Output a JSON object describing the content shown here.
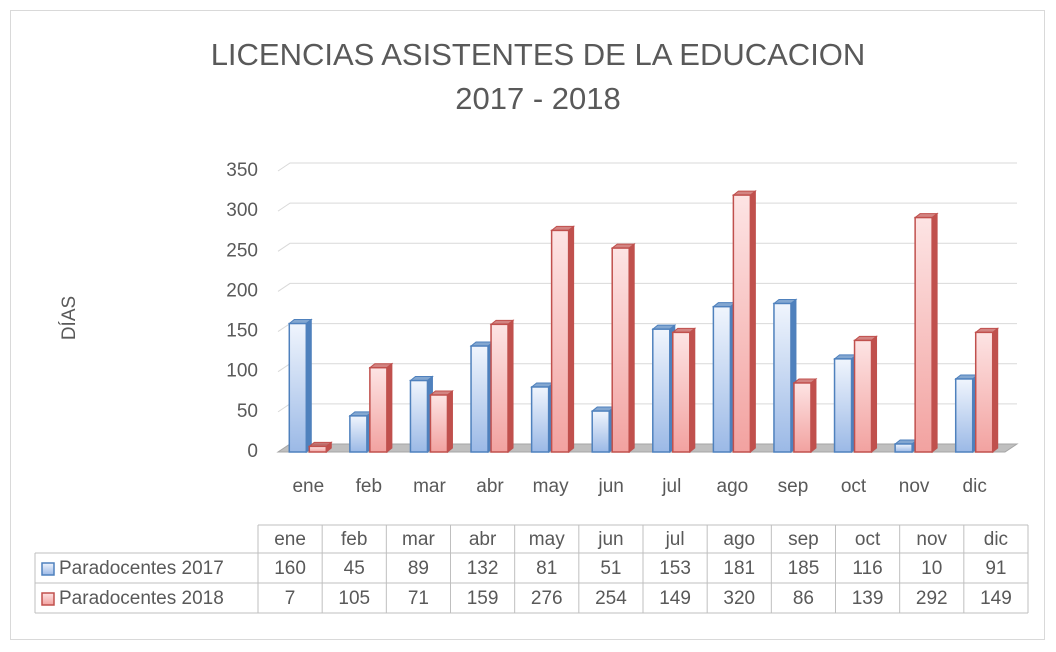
{
  "chart_data": {
    "type": "bar3d",
    "title": [
      "LICENCIAS ASISTENTES DE LA EDUCACION",
      "2017 - 2018"
    ],
    "y_label": "DÍAS",
    "categories": [
      "ene",
      "feb",
      "mar",
      "abr",
      "may",
      "jun",
      "jul",
      "ago",
      "sep",
      "oct",
      "nov",
      "dic"
    ],
    "series": [
      {
        "name": "Paradocentes 2017",
        "color": "#4f81bd",
        "values": [
          160,
          45,
          89,
          132,
          81,
          51,
          153,
          181,
          185,
          116,
          10,
          91
        ]
      },
      {
        "name": "Paradocentes 2018",
        "color": "#c0504d",
        "values": [
          7,
          105,
          71,
          159,
          276,
          254,
          149,
          320,
          86,
          139,
          292,
          149
        ]
      }
    ],
    "ylim": [
      0,
      350
    ],
    "yticks": [
      0,
      50,
      100,
      150,
      200,
      250,
      300,
      350
    ],
    "grid": true,
    "data_table": true
  }
}
